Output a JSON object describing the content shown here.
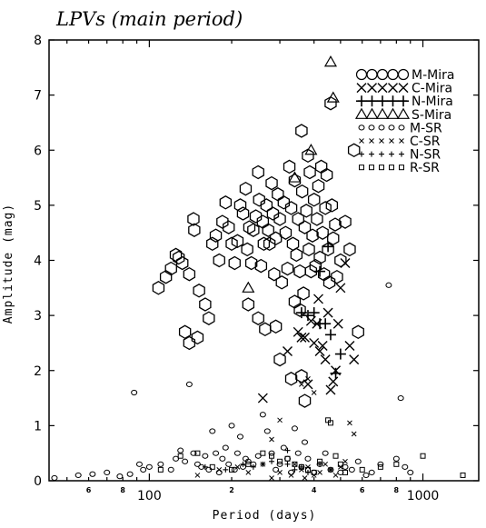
{
  "chart_data": {
    "type": "scatter",
    "title": "LPVs (main period)",
    "xlabel": "Period (days)",
    "ylabel": "Amplitude (mag)",
    "xscale": "log",
    "xlim": [
      43,
      1600
    ],
    "ylim": [
      0,
      8
    ],
    "x_ticks_labeled": [
      {
        "value": 100,
        "label": "100"
      },
      {
        "value": 1000,
        "label": "1000"
      }
    ],
    "x_ticks_minor_labeled": [
      {
        "value": 60,
        "label": "6"
      },
      {
        "value": 80,
        "label": "8"
      },
      {
        "value": 200,
        "label": "2"
      },
      {
        "value": 400,
        "label": "4"
      },
      {
        "value": 600,
        "label": "6"
      },
      {
        "value": 800,
        "label": "8"
      }
    ],
    "y_ticks": [
      0,
      1,
      2,
      3,
      4,
      5,
      6,
      7,
      8
    ],
    "legend_position": "top-right",
    "colors": {
      "ink": "#000000",
      "background": "#ffffff"
    },
    "series": [
      {
        "name": "M-Mira",
        "marker": "hexagon-large",
        "points": [
          [
            108,
            3.5
          ],
          [
            115,
            3.7
          ],
          [
            120,
            3.85
          ],
          [
            125,
            4.1
          ],
          [
            128,
            4.05
          ],
          [
            132,
            3.95
          ],
          [
            140,
            3.75
          ],
          [
            145,
            4.75
          ],
          [
            146,
            4.55
          ],
          [
            152,
            3.45
          ],
          [
            160,
            3.2
          ],
          [
            165,
            2.95
          ],
          [
            170,
            4.3
          ],
          [
            175,
            4.45
          ],
          [
            180,
            4.0
          ],
          [
            185,
            4.7
          ],
          [
            190,
            5.05
          ],
          [
            195,
            4.6
          ],
          [
            200,
            4.3
          ],
          [
            205,
            3.95
          ],
          [
            210,
            4.35
          ],
          [
            215,
            5.0
          ],
          [
            220,
            4.85
          ],
          [
            225,
            5.3
          ],
          [
            228,
            4.2
          ],
          [
            232,
            4.6
          ],
          [
            236,
            3.95
          ],
          [
            240,
            4.55
          ],
          [
            245,
            4.8
          ],
          [
            250,
            5.6
          ],
          [
            252,
            5.1
          ],
          [
            256,
            3.9
          ],
          [
            260,
            4.7
          ],
          [
            262,
            4.3
          ],
          [
            268,
            5.0
          ],
          [
            272,
            4.55
          ],
          [
            275,
            4.3
          ],
          [
            280,
            5.4
          ],
          [
            283,
            4.85
          ],
          [
            286,
            3.75
          ],
          [
            290,
            4.4
          ],
          [
            295,
            5.2
          ],
          [
            300,
            4.75
          ],
          [
            305,
            3.6
          ],
          [
            310,
            5.05
          ],
          [
            315,
            4.5
          ],
          [
            320,
            3.85
          ],
          [
            325,
            5.7
          ],
          [
            330,
            4.95
          ],
          [
            335,
            4.3
          ],
          [
            340,
            5.45
          ],
          [
            345,
            4.1
          ],
          [
            350,
            4.75
          ],
          [
            355,
            3.8
          ],
          [
            360,
            6.35
          ],
          [
            362,
            5.25
          ],
          [
            366,
            3.4
          ],
          [
            370,
            4.6
          ],
          [
            375,
            4.9
          ],
          [
            380,
            5.9
          ],
          [
            383,
            4.2
          ],
          [
            386,
            5.6
          ],
          [
            390,
            3.8
          ],
          [
            395,
            4.45
          ],
          [
            400,
            5.1
          ],
          [
            405,
            3.9
          ],
          [
            410,
            4.75
          ],
          [
            415,
            5.35
          ],
          [
            420,
            4.05
          ],
          [
            425,
            5.7
          ],
          [
            430,
            4.5
          ],
          [
            435,
            3.75
          ],
          [
            440,
            4.95
          ],
          [
            445,
            5.55
          ],
          [
            450,
            4.2
          ],
          [
            455,
            3.6
          ],
          [
            460,
            6.85
          ],
          [
            465,
            5.0
          ],
          [
            470,
            4.4
          ],
          [
            478,
            4.65
          ],
          [
            485,
            3.7
          ],
          [
            500,
            4.0
          ],
          [
            520,
            4.7
          ],
          [
            540,
            4.2
          ],
          [
            560,
            6.0
          ],
          [
            580,
            2.7
          ],
          [
            250,
            2.95
          ],
          [
            265,
            2.75
          ],
          [
            290,
            2.8
          ],
          [
            300,
            2.2
          ],
          [
            330,
            1.85
          ],
          [
            360,
            1.9
          ],
          [
            370,
            1.45
          ],
          [
            230,
            3.2
          ],
          [
            355,
            3.1
          ],
          [
            340,
            3.25
          ],
          [
            150,
            2.6
          ],
          [
            140,
            2.5
          ],
          [
            135,
            2.7
          ]
        ]
      },
      {
        "name": "C-Mira",
        "marker": "x-large",
        "points": [
          [
            260,
            1.5
          ],
          [
            320,
            2.35
          ],
          [
            350,
            2.7
          ],
          [
            370,
            2.6
          ],
          [
            380,
            1.75
          ],
          [
            390,
            2.9
          ],
          [
            400,
            2.5
          ],
          [
            410,
            2.85
          ],
          [
            420,
            2.35
          ],
          [
            430,
            2.45
          ],
          [
            440,
            2.2
          ],
          [
            450,
            3.05
          ],
          [
            460,
            1.65
          ],
          [
            470,
            1.8
          ],
          [
            480,
            2.0
          ],
          [
            490,
            2.85
          ],
          [
            500,
            3.5
          ],
          [
            520,
            3.95
          ],
          [
            540,
            2.45
          ],
          [
            560,
            2.2
          ],
          [
            415,
            3.3
          ],
          [
            360,
            2.6
          ]
        ]
      },
      {
        "name": "N-Mira",
        "marker": "plus-large",
        "points": [
          [
            380,
            3.0
          ],
          [
            400,
            3.05
          ],
          [
            420,
            2.85
          ],
          [
            440,
            2.85
          ],
          [
            460,
            2.65
          ],
          [
            480,
            1.95
          ],
          [
            500,
            2.3
          ],
          [
            360,
            3.05
          ],
          [
            450,
            4.25
          ],
          [
            420,
            3.8
          ]
        ]
      },
      {
        "name": "S-Mira",
        "marker": "triangle-large",
        "points": [
          [
            230,
            3.5
          ],
          [
            390,
            6.0
          ],
          [
            460,
            7.6
          ],
          [
            470,
            6.95
          ],
          [
            340,
            5.5
          ]
        ]
      },
      {
        "name": "M-SR",
        "marker": "circle-small",
        "points": [
          [
            45,
            0.05
          ],
          [
            55,
            0.1
          ],
          [
            62,
            0.12
          ],
          [
            70,
            0.15
          ],
          [
            78,
            0.08
          ],
          [
            85,
            0.12
          ],
          [
            88,
            1.6
          ],
          [
            92,
            0.3
          ],
          [
            95,
            0.2
          ],
          [
            100,
            0.25
          ],
          [
            110,
            0.3
          ],
          [
            120,
            0.2
          ],
          [
            125,
            0.4
          ],
          [
            130,
            0.55
          ],
          [
            135,
            0.35
          ],
          [
            140,
            1.75
          ],
          [
            145,
            0.5
          ],
          [
            150,
            0.3
          ],
          [
            155,
            0.25
          ],
          [
            160,
            0.45
          ],
          [
            165,
            0.2
          ],
          [
            170,
            0.9
          ],
          [
            175,
            0.5
          ],
          [
            180,
            0.15
          ],
          [
            185,
            0.4
          ],
          [
            190,
            0.6
          ],
          [
            195,
            0.3
          ],
          [
            200,
            1.0
          ],
          [
            205,
            0.2
          ],
          [
            210,
            0.5
          ],
          [
            215,
            0.8
          ],
          [
            220,
            0.25
          ],
          [
            225,
            0.4
          ],
          [
            230,
            0.35
          ],
          [
            240,
            0.3
          ],
          [
            250,
            0.45
          ],
          [
            260,
            1.2
          ],
          [
            270,
            0.9
          ],
          [
            280,
            0.5
          ],
          [
            290,
            0.2
          ],
          [
            300,
            0.3
          ],
          [
            310,
            0.6
          ],
          [
            320,
            0.4
          ],
          [
            330,
            0.15
          ],
          [
            340,
            0.95
          ],
          [
            350,
            0.5
          ],
          [
            360,
            0.25
          ],
          [
            370,
            0.7
          ],
          [
            380,
            0.4
          ],
          [
            400,
            0.15
          ],
          [
            420,
            0.3
          ],
          [
            440,
            0.5
          ],
          [
            460,
            0.2
          ],
          [
            500,
            0.15
          ],
          [
            520,
            0.25
          ],
          [
            550,
            0.2
          ],
          [
            580,
            0.35
          ],
          [
            620,
            0.1
          ],
          [
            650,
            0.15
          ],
          [
            700,
            0.3
          ],
          [
            750,
            3.55
          ],
          [
            800,
            0.4
          ],
          [
            830,
            1.5
          ],
          [
            860,
            0.25
          ],
          [
            900,
            0.15
          ]
        ]
      },
      {
        "name": "C-SR",
        "marker": "x-small",
        "points": [
          [
            150,
            0.1
          ],
          [
            180,
            0.2
          ],
          [
            210,
            0.25
          ],
          [
            230,
            0.15
          ],
          [
            260,
            0.3
          ],
          [
            280,
            0.05
          ],
          [
            300,
            0.15
          ],
          [
            330,
            0.1
          ],
          [
            340,
            0.3
          ],
          [
            360,
            0.2
          ],
          [
            370,
            0.05
          ],
          [
            380,
            0.25
          ],
          [
            400,
            0.1
          ],
          [
            420,
            0.15
          ],
          [
            440,
            0.3
          ],
          [
            460,
            0.2
          ],
          [
            480,
            0.1
          ],
          [
            500,
            0.25
          ],
          [
            520,
            0.35
          ],
          [
            540,
            1.05
          ],
          [
            560,
            0.85
          ],
          [
            360,
            1.75
          ],
          [
            380,
            1.85
          ],
          [
            400,
            1.6
          ],
          [
            300,
            1.1
          ],
          [
            280,
            0.75
          ]
        ]
      },
      {
        "name": "N-SR",
        "marker": "plus-small",
        "points": [
          [
            160,
            0.25
          ],
          [
            190,
            0.2
          ],
          [
            220,
            0.3
          ],
          [
            240,
            0.25
          ],
          [
            260,
            0.3
          ],
          [
            280,
            0.35
          ],
          [
            320,
            0.3
          ],
          [
            340,
            0.2
          ],
          [
            360,
            0.25
          ],
          [
            380,
            0.15
          ],
          [
            420,
            0.3
          ],
          [
            460,
            0.2
          ],
          [
            320,
            0.55
          ]
        ]
      },
      {
        "name": "R-SR",
        "marker": "square-small",
        "points": [
          [
            110,
            0.2
          ],
          [
            130,
            0.45
          ],
          [
            150,
            0.5
          ],
          [
            170,
            0.25
          ],
          [
            200,
            0.2
          ],
          [
            230,
            0.3
          ],
          [
            260,
            0.5
          ],
          [
            280,
            0.45
          ],
          [
            300,
            0.35
          ],
          [
            320,
            0.4
          ],
          [
            340,
            0.3
          ],
          [
            360,
            0.25
          ],
          [
            380,
            0.2
          ],
          [
            400,
            0.15
          ],
          [
            420,
            0.35
          ],
          [
            450,
            1.1
          ],
          [
            480,
            0.45
          ],
          [
            500,
            0.3
          ],
          [
            520,
            0.15
          ],
          [
            600,
            0.2
          ],
          [
            700,
            0.25
          ],
          [
            800,
            0.3
          ],
          [
            1000,
            0.45
          ],
          [
            1400,
            0.1
          ],
          [
            460,
            1.05
          ]
        ]
      }
    ]
  }
}
